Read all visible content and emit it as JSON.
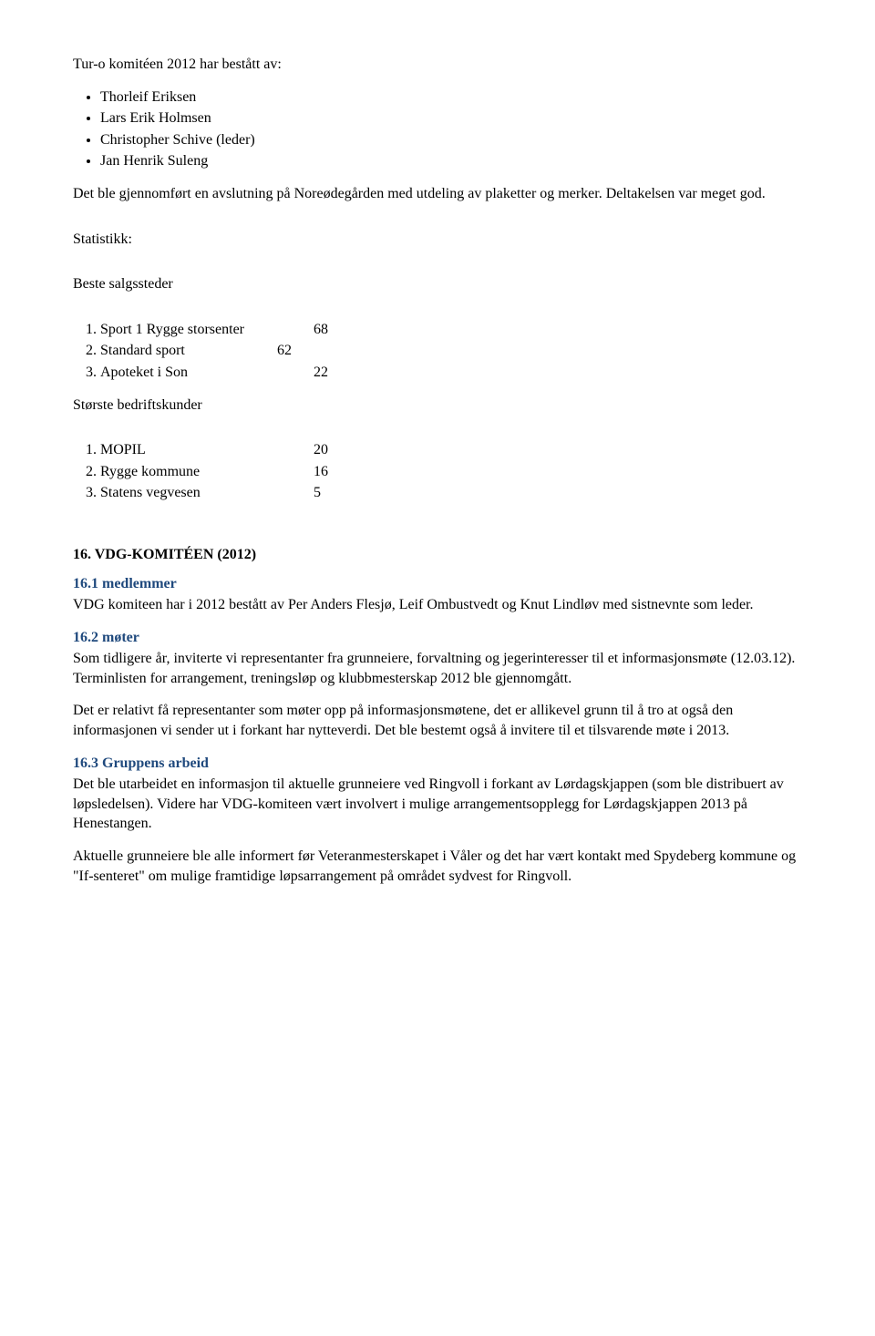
{
  "intro": {
    "title_line": "Tur-o komitéen 2012 har bestått av:",
    "members": [
      "Thorleif Eriksen",
      "Lars Erik Holmsen",
      "Christopher Schive (leder)",
      "Jan Henrik Suleng"
    ],
    "closing_para": "Det ble gjennomført en avslutning på Noreødegården med utdeling av plaketter og merker. Deltakelsen var meget god."
  },
  "stats": {
    "heading": "Statistikk:",
    "sales_heading": "Beste salgssteder",
    "sales": [
      {
        "rank": 1,
        "name": "Sport 1 Rygge storsenter",
        "value": 68
      },
      {
        "rank": 2,
        "name": "Standard sport",
        "value": 62
      },
      {
        "rank": 3,
        "name": "Apoteket i Son",
        "value": 22
      }
    ],
    "customers_heading": "Største bedriftskunder",
    "customers": [
      {
        "rank": 1,
        "name": "MOPIL",
        "value": 20
      },
      {
        "rank": 2,
        "name": "Rygge kommune",
        "value": 16
      },
      {
        "rank": 3,
        "name": "Statens vegvesen",
        "value": 5
      }
    ]
  },
  "section16": {
    "heading": "16. VDG-KOMITÉEN (2012)",
    "s1_head": "16.1 medlemmer",
    "s1_body": "VDG komiteen har i 2012 bestått av Per Anders Flesjø, Leif Ombustvedt og Knut Lindløv med sistnevnte som leder.",
    "s2_head": "16.2 møter",
    "s2_body1": "Som tidligere år, inviterte vi representanter fra grunneiere, forvaltning og jegerinteresser til et informasjonsmøte (12.03.12). Terminlisten for arrangement, treningsløp og klubbmesterskap 2012 ble gjennomgått.",
    "s2_body2": "Det er relativt få representanter som møter opp på informasjonsmøtene, det er allikevel grunn til å tro at også den informasjonen vi sender ut i forkant har nytteverdi. Det ble bestemt også å invitere til et tilsvarende møte i 2013.",
    "s3_head": "16.3 Gruppens arbeid",
    "s3_body1": "Det ble utarbeidet en informasjon til aktuelle grunneiere ved Ringvoll i forkant av Lørdagskjappen (som ble distribuert av løpsledelsen). Videre har VDG-komiteen vært involvert i mulige arrangementsopplegg for Lørdagskjappen 2013 på Henestangen.",
    "s3_body2": "Aktuelle grunneiere ble alle informert før Veteranmesterskapet i Våler og det har vært kontakt med Spydeberg kommune og \"If-senteret\" om mulige framtidige løpsarrangement på området sydvest for Ringvoll."
  },
  "colors": {
    "subhead": "#1f497d",
    "text": "#000000",
    "background": "#ffffff"
  }
}
